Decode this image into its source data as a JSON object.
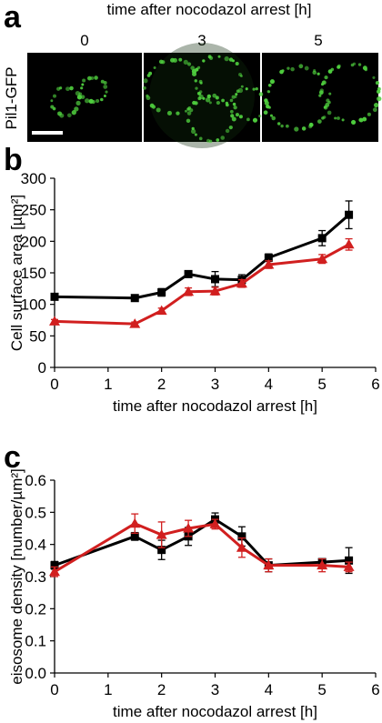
{
  "panel_a": {
    "letter": "a",
    "header": "time after nocodazol arrest [h]",
    "timepoints": [
      "0",
      "3",
      "5"
    ],
    "row_label": "Pil1-GFP",
    "cell_color": "#4fcf3e",
    "bg_color": "#000000"
  },
  "chart_data": [
    {
      "panel": "b",
      "type": "line",
      "xlabel": "time after nocodazol arrest [h]",
      "ylabel": "Cell surface area [µm²]",
      "xlim": [
        0,
        6
      ],
      "ylim": [
        0,
        300
      ],
      "xticks": [
        0,
        1,
        2,
        3,
        4,
        5,
        6
      ],
      "yticks": [
        0,
        50,
        100,
        150,
        200,
        250,
        300
      ],
      "grid": false,
      "series": [
        {
          "color": "#000000",
          "marker": "square",
          "x": [
            0,
            1.5,
            2,
            2.5,
            3,
            3.5,
            4,
            5,
            5.5
          ],
          "y": [
            112,
            110,
            119,
            148,
            140,
            139,
            174,
            205,
            242
          ],
          "err": [
            4,
            4,
            6,
            5,
            12,
            8,
            6,
            12,
            22
          ]
        },
        {
          "color": "#d11f1f",
          "marker": "triangle",
          "x": [
            0,
            1.5,
            2,
            2.5,
            3,
            3.5,
            4,
            5,
            5.5
          ],
          "y": [
            73,
            69,
            90,
            120,
            121,
            133,
            163,
            172,
            195
          ],
          "err": [
            3,
            3,
            4,
            6,
            6,
            6,
            6,
            7,
            9
          ]
        }
      ]
    },
    {
      "panel": "c",
      "type": "line",
      "xlabel": "time after nocodazol arrest [h]",
      "ylabel": "eisosome density [number/µm²]",
      "xlim": [
        0,
        6
      ],
      "ylim": [
        0,
        0.6
      ],
      "xticks": [
        0,
        1,
        2,
        3,
        4,
        5,
        6
      ],
      "yticks": [
        0,
        0.1,
        0.2,
        0.3,
        0.4,
        0.5,
        0.6
      ],
      "grid": false,
      "series": [
        {
          "color": "#000000",
          "marker": "square",
          "x": [
            0,
            1.5,
            2,
            2.5,
            3,
            3.5,
            4,
            5,
            5.5
          ],
          "y": [
            0.335,
            0.425,
            0.383,
            0.425,
            0.478,
            0.425,
            0.335,
            0.345,
            0.35
          ],
          "err": [
            0.012,
            0.012,
            0.03,
            0.028,
            0.02,
            0.03,
            0.02,
            0.01,
            0.04
          ]
        },
        {
          "color": "#d11f1f",
          "marker": "triangle",
          "x": [
            0,
            1.5,
            2,
            2.5,
            3,
            3.5,
            4,
            5,
            5.5
          ],
          "y": [
            0.315,
            0.465,
            0.43,
            0.45,
            0.463,
            0.39,
            0.335,
            0.335,
            0.33
          ],
          "err": [
            0.015,
            0.03,
            0.04,
            0.025,
            0.015,
            0.03,
            0.02,
            0.02,
            0.015
          ]
        }
      ]
    }
  ]
}
